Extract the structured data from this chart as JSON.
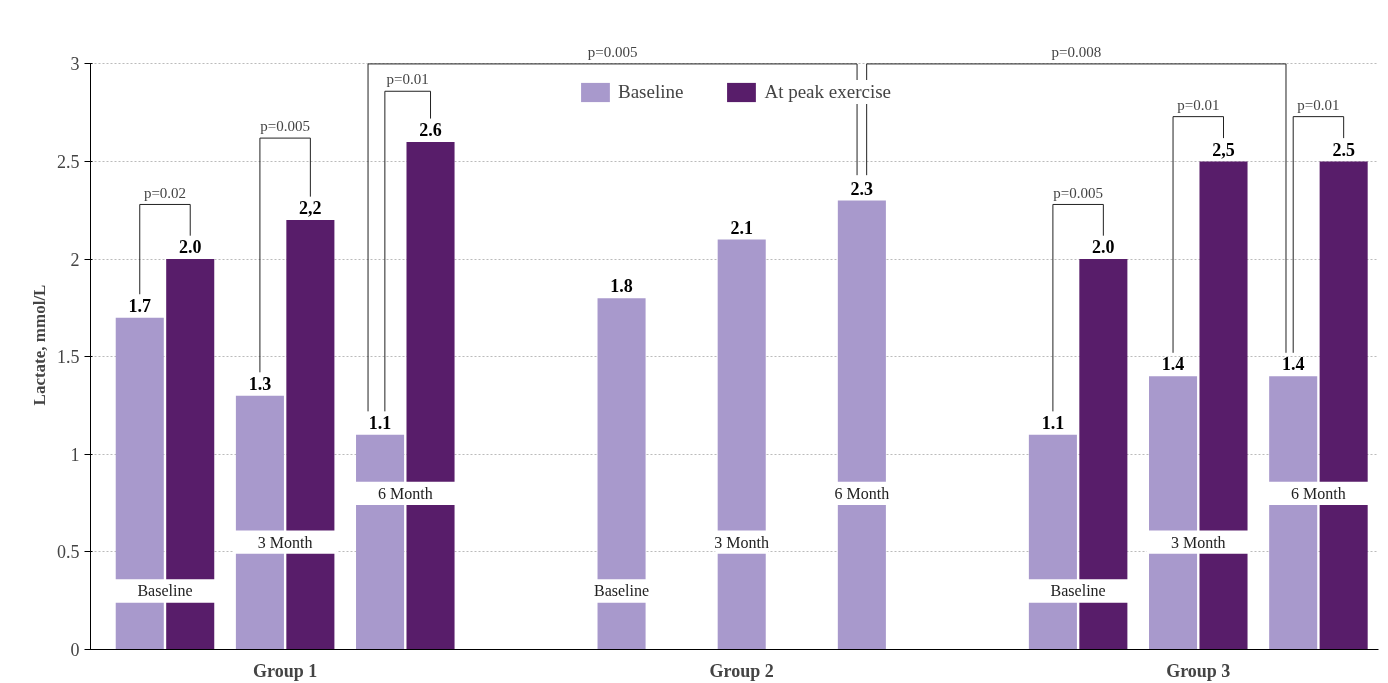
{
  "chart_data": {
    "type": "bar",
    "ylabel": "Lactate, mmol/L",
    "categories": [
      "Baseline",
      "3 Month",
      "6 Month",
      "Baseline",
      "3 Month",
      "6 Month",
      "Baseline",
      "3 Month",
      "6 Month"
    ],
    "series": [
      {
        "name": "Baseline",
        "color": "#a899cc",
        "values": [
          1.7,
          1.3,
          1.1,
          1.8,
          2.1,
          2.3,
          1.1,
          1.4,
          1.4
        ],
        "value_labels": [
          "1.7",
          "1.3",
          "1.1",
          "1.8",
          "2.1",
          "2.3",
          "1.1",
          "1.4",
          "1.4"
        ]
      },
      {
        "name": "At peak exercise",
        "color": "#581d6a",
        "values": [
          2.0,
          2.2,
          2.6,
          null,
          null,
          null,
          2.0,
          2.5,
          2.5
        ],
        "value_labels": [
          "2.0",
          "2,2",
          "2.6",
          null,
          null,
          null,
          "2.0",
          "2,5",
          "2.5"
        ]
      }
    ],
    "annotations": [
      "Group 1",
      "Group 2",
      "Group 3",
      "p=0.02",
      "p=0.005",
      "p=0.01",
      "p=0.005",
      "p=0.008",
      "p=0.005",
      "p=0.01",
      "p=0.01"
    ],
    "ylim": [
      0,
      3
    ],
    "yticks": [
      0,
      0.5,
      1,
      1.5,
      2,
      2.5,
      3
    ],
    "grid": "y",
    "legend": "top"
  }
}
